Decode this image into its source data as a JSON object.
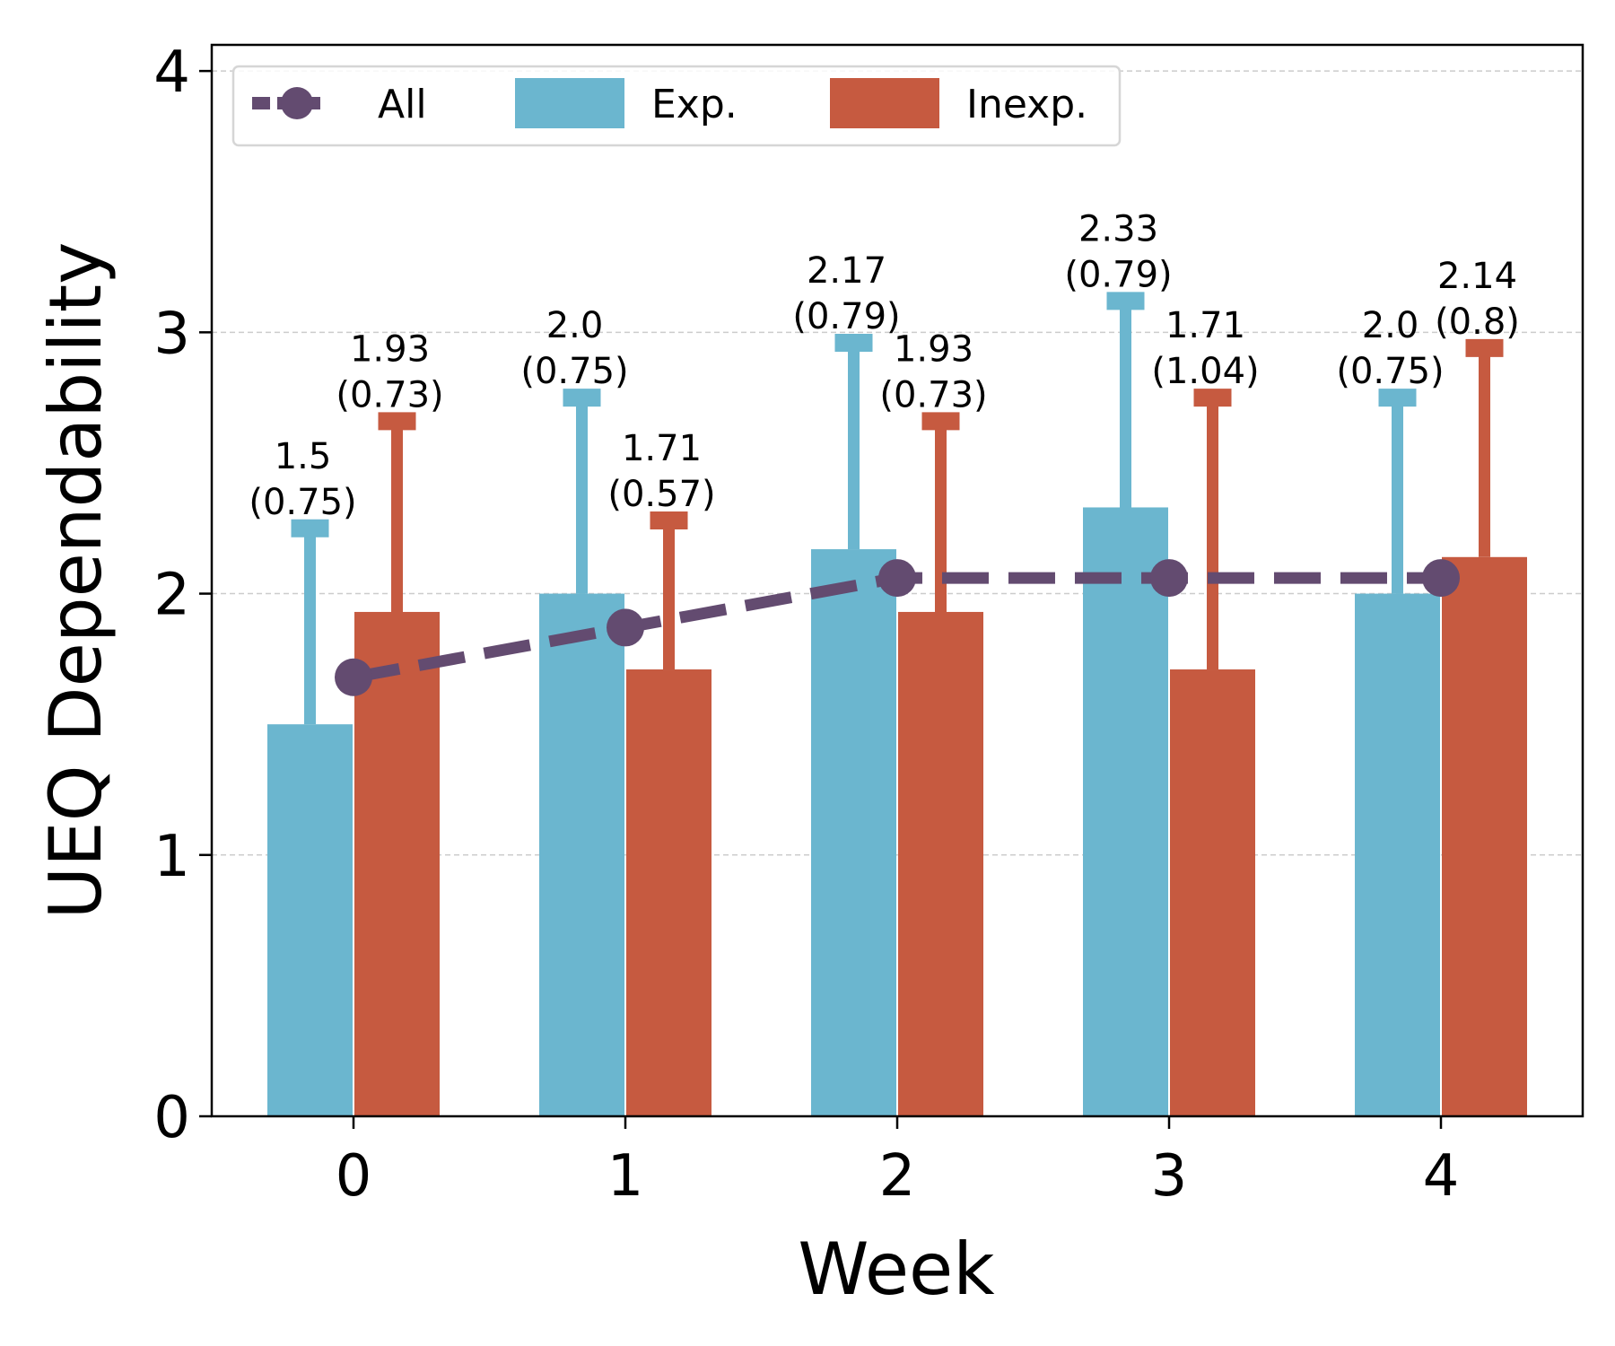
{
  "chart_data": {
    "type": "bar",
    "xlabel": "Week",
    "ylabel": "UEQ Dependability",
    "categories": [
      "0",
      "1",
      "2",
      "3",
      "4"
    ],
    "ylim": [
      0,
      4.1
    ],
    "yticks": [
      "0",
      "1",
      "2",
      "3",
      "4"
    ],
    "grid": "horizontal dashed",
    "legend_position": "top-left",
    "series": [
      {
        "name": "All",
        "kind": "line",
        "style": "dashed with circle markers",
        "color": "#634b70",
        "values": [
          1.68,
          1.87,
          2.06,
          2.06,
          2.06
        ]
      },
      {
        "name": "Exp.",
        "kind": "bar",
        "color": "#6bb6cf",
        "values": [
          1.5,
          2.0,
          2.17,
          2.33,
          2.0
        ],
        "errors": [
          0.75,
          0.75,
          0.79,
          0.79,
          0.75
        ],
        "labels": [
          [
            "1.5",
            "(0.75)"
          ],
          [
            "2.0",
            "(0.75)"
          ],
          [
            "2.17",
            "(0.79)"
          ],
          [
            "2.33",
            "(0.79)"
          ],
          [
            "2.0",
            "(0.75)"
          ]
        ]
      },
      {
        "name": "Inexp.",
        "kind": "bar",
        "color": "#c65a40",
        "values": [
          1.93,
          1.71,
          1.93,
          1.71,
          2.14
        ],
        "errors": [
          0.73,
          0.57,
          0.73,
          1.04,
          0.8
        ],
        "labels": [
          [
            "1.93",
            "(0.73)"
          ],
          [
            "1.71",
            "(0.57)"
          ],
          [
            "1.93",
            "(0.73)"
          ],
          [
            "1.71",
            "(1.04)"
          ],
          [
            "2.14",
            "(0.8)"
          ]
        ]
      }
    ]
  }
}
